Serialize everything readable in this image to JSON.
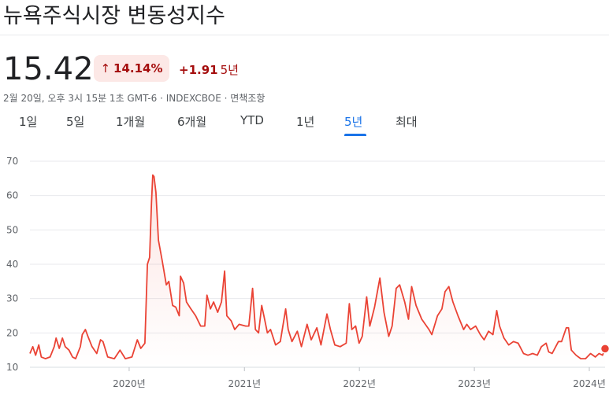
{
  "header": {
    "title": "뉴욕주식시장 변동성지수",
    "price": "15.42",
    "change_pct": "14.14%",
    "change_abs": "+1.91",
    "change_period": "5년",
    "meta": "2월 20일, 오후 3시 15분 1초 GMT-6 · INDEXCBOE · 면책조항"
  },
  "tabs": [
    {
      "label": "1일"
    },
    {
      "label": "5일"
    },
    {
      "label": "1개월"
    },
    {
      "label": "6개월"
    },
    {
      "label": "YTD"
    },
    {
      "label": "1년"
    },
    {
      "label": "5년",
      "active": true
    },
    {
      "label": "최대"
    }
  ],
  "colors": {
    "line": "#ea4335",
    "negative_text": "#a50e0e",
    "badge_bg": "#fce8e6",
    "active_tab": "#1a73e8"
  },
  "icons": {
    "change_arrow": "arrow-up-icon"
  },
  "chart_data": {
    "type": "area",
    "title": "",
    "xlabel": "",
    "ylabel": "",
    "ylim": [
      10,
      70
    ],
    "yticks": [
      10,
      20,
      30,
      40,
      50,
      60,
      70
    ],
    "xtick_labels": [
      {
        "label": "2020년",
        "x": "2020-01-01"
      },
      {
        "label": "2021년",
        "x": "2021-01-01"
      },
      {
        "label": "2022년",
        "x": "2022-01-01"
      },
      {
        "label": "2023년",
        "x": "2023-01-01"
      },
      {
        "label": "2024년",
        "x": "2024-01-01"
      }
    ],
    "x_range": [
      "2019-02-20",
      "2024-02-20"
    ],
    "grid": true,
    "series": [
      {
        "values": [
          [
            "2019-02-20",
            14
          ],
          [
            "2019-03-01",
            16
          ],
          [
            "2019-03-10",
            13.5
          ],
          [
            "2019-03-20",
            16.5
          ],
          [
            "2019-03-28",
            13
          ],
          [
            "2019-04-10",
            12.5
          ],
          [
            "2019-04-25",
            13
          ],
          [
            "2019-05-08",
            16
          ],
          [
            "2019-05-14",
            18.5
          ],
          [
            "2019-05-24",
            15.5
          ],
          [
            "2019-06-03",
            18.5
          ],
          [
            "2019-06-12",
            16
          ],
          [
            "2019-06-24",
            15
          ],
          [
            "2019-07-05",
            13
          ],
          [
            "2019-07-15",
            12.5
          ],
          [
            "2019-07-30",
            16
          ],
          [
            "2019-08-05",
            19.5
          ],
          [
            "2019-08-15",
            21
          ],
          [
            "2019-08-23",
            19
          ],
          [
            "2019-09-05",
            16
          ],
          [
            "2019-09-20",
            14
          ],
          [
            "2019-10-02",
            18
          ],
          [
            "2019-10-10",
            17.5
          ],
          [
            "2019-10-25",
            13
          ],
          [
            "2019-11-15",
            12.5
          ],
          [
            "2019-12-03",
            15
          ],
          [
            "2019-12-20",
            12.5
          ],
          [
            "2020-01-10",
            13
          ],
          [
            "2020-01-27",
            18
          ],
          [
            "2020-02-07",
            15.5
          ],
          [
            "2020-02-20",
            17
          ],
          [
            "2020-02-28",
            40
          ],
          [
            "2020-03-06",
            42
          ],
          [
            "2020-03-12",
            58
          ],
          [
            "2020-03-16",
            66
          ],
          [
            "2020-03-20",
            65.5
          ],
          [
            "2020-03-26",
            61
          ],
          [
            "2020-04-03",
            47
          ],
          [
            "2020-04-15",
            41
          ],
          [
            "2020-04-28",
            34
          ],
          [
            "2020-05-06",
            35
          ],
          [
            "2020-05-18",
            28
          ],
          [
            "2020-05-28",
            27.5
          ],
          [
            "2020-06-08",
            25
          ],
          [
            "2020-06-12",
            36.5
          ],
          [
            "2020-06-22",
            34.5
          ],
          [
            "2020-07-01",
            29
          ],
          [
            "2020-07-15",
            27
          ],
          [
            "2020-07-30",
            25
          ],
          [
            "2020-08-15",
            22
          ],
          [
            "2020-08-28",
            22
          ],
          [
            "2020-09-04",
            31
          ],
          [
            "2020-09-15",
            27
          ],
          [
            "2020-09-25",
            29
          ],
          [
            "2020-10-08",
            26
          ],
          [
            "2020-10-20",
            29
          ],
          [
            "2020-10-30",
            38
          ],
          [
            "2020-11-06",
            25
          ],
          [
            "2020-11-20",
            23.5
          ],
          [
            "2020-12-01",
            21
          ],
          [
            "2020-12-15",
            22.5
          ],
          [
            "2021-01-05",
            22
          ],
          [
            "2021-01-15",
            22
          ],
          [
            "2021-01-27",
            33
          ],
          [
            "2021-02-05",
            21
          ],
          [
            "2021-02-15",
            20
          ],
          [
            "2021-02-25",
            28
          ],
          [
            "2021-03-05",
            24.5
          ],
          [
            "2021-03-15",
            20
          ],
          [
            "2021-03-25",
            21
          ],
          [
            "2021-04-10",
            16.5
          ],
          [
            "2021-04-25",
            17.5
          ],
          [
            "2021-05-12",
            27
          ],
          [
            "2021-05-20",
            21
          ],
          [
            "2021-06-01",
            17.5
          ],
          [
            "2021-06-18",
            20.5
          ],
          [
            "2021-07-01",
            16
          ],
          [
            "2021-07-19",
            22.5
          ],
          [
            "2021-08-01",
            18
          ],
          [
            "2021-08-19",
            21.5
          ],
          [
            "2021-09-01",
            16.5
          ],
          [
            "2021-09-20",
            25.5
          ],
          [
            "2021-10-01",
            21
          ],
          [
            "2021-10-15",
            16.5
          ],
          [
            "2021-11-01",
            16
          ],
          [
            "2021-11-20",
            17
          ],
          [
            "2021-11-30",
            28.5
          ],
          [
            "2021-12-08",
            21
          ],
          [
            "2021-12-20",
            22
          ],
          [
            "2021-12-31",
            17
          ],
          [
            "2022-01-10",
            19
          ],
          [
            "2022-01-24",
            30.5
          ],
          [
            "2022-02-03",
            22
          ],
          [
            "2022-02-18",
            27.5
          ],
          [
            "2022-03-07",
            36
          ],
          [
            "2022-03-20",
            26
          ],
          [
            "2022-04-04",
            19
          ],
          [
            "2022-04-15",
            22
          ],
          [
            "2022-04-28",
            33
          ],
          [
            "2022-05-09",
            34
          ],
          [
            "2022-05-25",
            29
          ],
          [
            "2022-06-06",
            24
          ],
          [
            "2022-06-16",
            33.5
          ],
          [
            "2022-06-30",
            28
          ],
          [
            "2022-07-18",
            24
          ],
          [
            "2022-08-10",
            21
          ],
          [
            "2022-08-19",
            19.5
          ],
          [
            "2022-09-06",
            25
          ],
          [
            "2022-09-20",
            27
          ],
          [
            "2022-09-30",
            32
          ],
          [
            "2022-10-12",
            33.5
          ],
          [
            "2022-10-25",
            29
          ],
          [
            "2022-11-10",
            25
          ],
          [
            "2022-11-28",
            21
          ],
          [
            "2022-12-08",
            22.5
          ],
          [
            "2022-12-20",
            21
          ],
          [
            "2023-01-05",
            22
          ],
          [
            "2023-01-20",
            19.5
          ],
          [
            "2023-02-01",
            18
          ],
          [
            "2023-02-15",
            20.5
          ],
          [
            "2023-03-01",
            19.5
          ],
          [
            "2023-03-13",
            26.5
          ],
          [
            "2023-03-22",
            22
          ],
          [
            "2023-04-05",
            18.5
          ],
          [
            "2023-04-20",
            16.5
          ],
          [
            "2023-05-05",
            17.5
          ],
          [
            "2023-05-20",
            17
          ],
          [
            "2023-06-06",
            14
          ],
          [
            "2023-06-20",
            13.5
          ],
          [
            "2023-07-05",
            14
          ],
          [
            "2023-07-20",
            13.5
          ],
          [
            "2023-08-02",
            16
          ],
          [
            "2023-08-17",
            17
          ],
          [
            "2023-08-25",
            14.5
          ],
          [
            "2023-09-05",
            14
          ],
          [
            "2023-09-25",
            17.5
          ],
          [
            "2023-10-05",
            17.5
          ],
          [
            "2023-10-20",
            21.5
          ],
          [
            "2023-10-27",
            21.5
          ],
          [
            "2023-11-05",
            15
          ],
          [
            "2023-11-20",
            13.5
          ],
          [
            "2023-12-05",
            12.5
          ],
          [
            "2023-12-20",
            12.5
          ],
          [
            "2024-01-05",
            14
          ],
          [
            "2024-01-20",
            13
          ],
          [
            "2024-02-01",
            14
          ],
          [
            "2024-02-12",
            13.5
          ],
          [
            "2024-02-20",
            15.42
          ]
        ]
      }
    ]
  }
}
